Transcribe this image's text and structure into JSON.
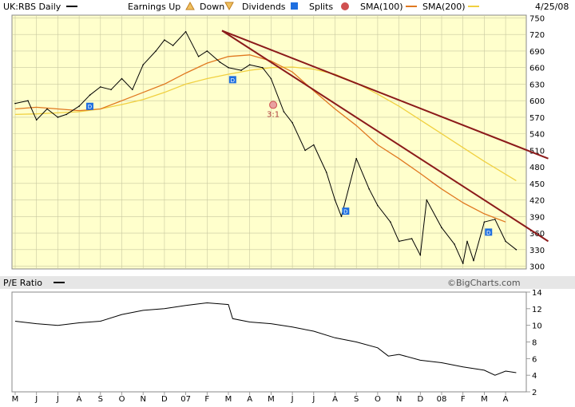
{
  "header": {
    "symbol": "UK:RBS Daily",
    "earnings_up": "Earnings Up",
    "down": "Down",
    "dividends": "Dividends",
    "splits": "Splits",
    "sma100": "SMA(100)",
    "sma200": "SMA(200)",
    "date": "4/25/08"
  },
  "colors": {
    "background": "#ffffcc",
    "price": "#000000",
    "sma100": "#e07820",
    "sma200": "#f0d040",
    "trendline": "#8b1a1a",
    "dividend_marker": "#1f6fe0",
    "split_marker": "#d05050",
    "earnings_up_marker": "#e0a030",
    "earnings_down_marker": "#e0a030"
  },
  "pe_panel": {
    "label": "P/E Ratio",
    "credit": "©BigCharts.com"
  },
  "split_label": "3:1",
  "dividend_marker_text": "D",
  "chart_data": [
    {
      "type": "line",
      "name": "price",
      "title": "UK:RBS Daily",
      "xlabel": "",
      "ylabel": "",
      "categories": [
        "M",
        "J",
        "J",
        "A",
        "S",
        "O",
        "N",
        "D",
        "07",
        "F",
        "M",
        "A",
        "M",
        "J",
        "J",
        "A",
        "S",
        "O",
        "N",
        "D",
        "08",
        "F",
        "M",
        "A"
      ],
      "ylim": [
        295,
        755
      ],
      "y_ticks": [
        300,
        330,
        360,
        390,
        420,
        450,
        480,
        510,
        540,
        570,
        600,
        630,
        660,
        690,
        720,
        750
      ],
      "grid": true,
      "series": [
        {
          "name": "UK:RBS Daily",
          "x": [
            0.0,
            0.6,
            1.0,
            1.5,
            2.0,
            2.4,
            3.0,
            3.5,
            4.0,
            4.5,
            5.0,
            5.5,
            6.0,
            6.6,
            7.0,
            7.4,
            8.0,
            8.6,
            9.0,
            9.6,
            10.0,
            10.6,
            11.0,
            11.6,
            12.0,
            12.6,
            13.0,
            13.6,
            14.0,
            14.6,
            15.0,
            15.3,
            16.0,
            16.6,
            17.0,
            17.6,
            18.0,
            18.6,
            19.0,
            19.3,
            20.0,
            20.6,
            21.0,
            21.2,
            21.5,
            22.0,
            22.5,
            23.0,
            23.5
          ],
          "values": [
            595,
            600,
            565,
            585,
            570,
            575,
            590,
            610,
            625,
            620,
            640,
            620,
            665,
            690,
            710,
            700,
            725,
            680,
            690,
            670,
            660,
            655,
            665,
            660,
            640,
            580,
            560,
            510,
            520,
            470,
            420,
            390,
            495,
            440,
            410,
            380,
            345,
            350,
            320,
            420,
            370,
            340,
            305,
            345,
            310,
            380,
            385,
            345,
            330
          ]
        },
        {
          "name": "SMA(100)",
          "x": [
            0,
            1,
            2,
            3,
            4,
            5,
            6,
            7,
            8,
            9,
            10,
            11,
            12,
            13,
            14,
            15,
            16,
            17,
            18,
            19,
            20,
            21,
            22,
            23
          ],
          "values": [
            585,
            588,
            585,
            582,
            585,
            600,
            615,
            630,
            650,
            668,
            680,
            683,
            672,
            652,
            618,
            585,
            555,
            520,
            495,
            468,
            440,
            415,
            395,
            380
          ]
        },
        {
          "name": "SMA(200)",
          "x": [
            0,
            1,
            2,
            3,
            4,
            5,
            6,
            7,
            8,
            9,
            10,
            11,
            12,
            13,
            14,
            15,
            16,
            17,
            18,
            19,
            20,
            21,
            22,
            23.5
          ],
          "values": [
            575,
            576,
            578,
            580,
            585,
            593,
            602,
            615,
            630,
            640,
            648,
            655,
            660,
            661,
            657,
            648,
            632,
            612,
            590,
            565,
            540,
            515,
            490,
            455
          ]
        },
        {
          "name": "Trendline 1",
          "x": [
            9.7,
            25
          ],
          "values": [
            727,
            495
          ]
        },
        {
          "name": "Trendline 2",
          "x": [
            9.7,
            25
          ],
          "values": [
            727,
            345
          ]
        }
      ]
    },
    {
      "type": "line",
      "title": "P/E Ratio",
      "xlabel": "",
      "ylabel": "",
      "categories": [
        "M",
        "J",
        "J",
        "A",
        "S",
        "O",
        "N",
        "D",
        "07",
        "F",
        "M",
        "A",
        "M",
        "J",
        "J",
        "A",
        "S",
        "O",
        "N",
        "D",
        "08",
        "F",
        "M",
        "A"
      ],
      "ylim": [
        2,
        14
      ],
      "y_ticks": [
        2,
        4,
        6,
        8,
        10,
        12,
        14
      ],
      "grid": false,
      "series": [
        {
          "name": "P/E Ratio",
          "x": [
            0,
            1,
            2,
            3,
            4,
            5,
            6,
            7,
            8,
            9,
            10,
            10.2,
            11,
            12,
            13,
            14,
            15,
            16,
            17,
            17.5,
            18,
            19,
            20,
            21,
            22,
            22.5,
            23,
            23.5
          ],
          "values": [
            10.5,
            10.2,
            10.0,
            10.3,
            10.5,
            11.3,
            11.8,
            12.0,
            12.4,
            12.7,
            12.5,
            10.8,
            10.4,
            10.2,
            9.8,
            9.3,
            8.5,
            8.0,
            7.3,
            6.3,
            6.5,
            5.8,
            5.5,
            5.0,
            4.6,
            4.0,
            4.5,
            4.3
          ]
        }
      ]
    }
  ],
  "dividend_markers_x": [
    3.5,
    10.2,
    15.5,
    22.2
  ],
  "split_marker_x": 12.1
}
